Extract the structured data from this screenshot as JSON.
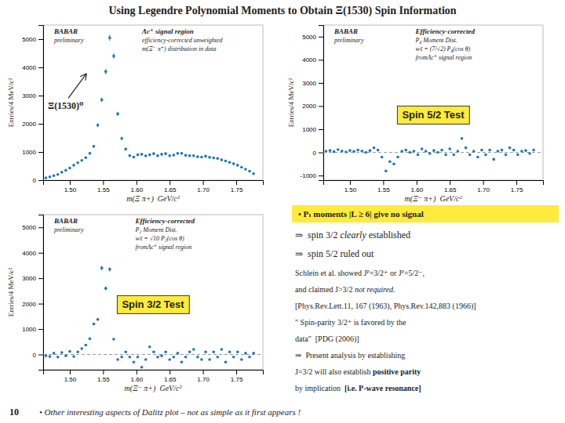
{
  "title": "Using Legendre Polynomial Moments to Obtain Ξ(1530) Spin Information",
  "note": "• Pₗ moments |L ≥ 6| give no signal",
  "annotations": [
    [
      "⇒  spin 3/2 ",
      "clearly",
      " established"
    ],
    [
      "⇒  spin 5/2 ruled out"
    ],
    [
      "Schlein et al. showed Jᴾ=3/2⁺ or Jᴾ=5/2⁻,"
    ],
    [
      "and claimed J>3/2 ",
      "not required."
    ],
    [
      "[Phys.Rev.Lett.11, 167 (1963), Phys.Rev.142,883 (1966)]"
    ],
    [
      "\" Spin-parity 3/2⁺ is favored by the"
    ],
    [
      "data\"  [PDG (2006)]"
    ],
    [
      "⇒  Present analysis by establishing"
    ],
    [
      "J=3/2 will also establish ",
      "positive parity"
    ],
    [
      "by implication  ",
      "[i.e. P-wave resonance]"
    ]
  ],
  "footer": [
    "10",
    "• Other interesting aspects of Dalitz plot – not as simple as it first appears !"
  ],
  "chart_data": [
    {
      "type": "scatter",
      "xlabel": "m(Ξ π+)  GeV/c²",
      "ylabel": "Entries/4 MeV/c²",
      "xlim": [
        1.46,
        1.79
      ],
      "ylim": [
        0,
        5500
      ],
      "xticks": [
        {
          "value": 1.5,
          "label": "1.50"
        },
        1.55,
        {
          "value": 1.6,
          "label": "1.60"
        },
        1.65,
        {
          "value": 1.7,
          "label": "1.70"
        },
        1.75
      ],
      "yticks": [
        0,
        1000,
        2000,
        3000,
        4000,
        5000
      ],
      "x": [
        1.464,
        1.47,
        1.476,
        1.482,
        1.488,
        1.494,
        1.5,
        1.506,
        1.512,
        1.518,
        1.524,
        1.53,
        1.536,
        1.542,
        1.548,
        1.554,
        1.56,
        1.566,
        1.572,
        1.578,
        1.584,
        1.59,
        1.596,
        1.602,
        1.608,
        1.614,
        1.62,
        1.626,
        1.632,
        1.638,
        1.644,
        1.65,
        1.656,
        1.662,
        1.668,
        1.674,
        1.68,
        1.686,
        1.692,
        1.698,
        1.704,
        1.71,
        1.716,
        1.722,
        1.728,
        1.734,
        1.74,
        1.746,
        1.752,
        1.758,
        1.764,
        1.77,
        1.776
      ],
      "values": [
        80,
        120,
        160,
        200,
        280,
        350,
        430,
        530,
        620,
        700,
        800,
        950,
        1200,
        1950,
        2850,
        3850,
        5050,
        4400,
        2350,
        1480,
        1100,
        870,
        820,
        900,
        920,
        860,
        900,
        940,
        870,
        920,
        940,
        870,
        890,
        950,
        950,
        880,
        870,
        870,
        830,
        820,
        850,
        810,
        790,
        770,
        720,
        680,
        630,
        580,
        530,
        460,
        390,
        320,
        230
      ],
      "errors": [
        20,
        20,
        20,
        21.2132,
        25.0998,
        28.0624,
        31.1047,
        34.5326,
        37.3497,
        39.6863,
        42.4264,
        46.2331,
        51.9615,
        66.2382,
        80.0781,
        93.0726,
        106.595,
        99.4987,
        72.7152,
        57.7062,
        49.7494,
        44.2436,
        42.9535,
        45,
        45.4973,
        43.9886,
        45,
        45.9891,
        44.2436,
        45.4973,
        45.9891,
        44.2436,
        44.7493,
        46.2331,
        46.2331,
        44.4972,
        44.2436,
        44.2436,
        43.2146,
        42.9535,
        43.7321,
        42.6907,
        42.1604,
        41.6233,
        40.2492,
        39.1152,
        37.6497,
        36.1248,
        34.5326,
        32.1714,
        29.6226,
        26.8328,
        22.7486
      ],
      "annotations": [
        [
          "BABAR",
          "preliminary"
        ],
        [
          "Λc⁺ signal region",
          "efficiency-corrected unweighted",
          "m(Ξ⁻ π⁺) distribution in data"
        ],
        {
          "text": "Ξ(1530)⁰",
          "x": 1.527,
          "y": 3850
        }
      ]
    },
    {
      "type": "scatter",
      "xlabel": "m(Ξ⁻ π+)  GeV/c²",
      "ylabel": "Entries/4 MeV/c²",
      "xlim": [
        1.46,
        1.79
      ],
      "ylim": [
        -1200,
        5500
      ],
      "xticks": [
        {
          "value": 1.5,
          "label": "1.50"
        },
        1.55,
        {
          "value": 1.6,
          "label": "1.60"
        },
        1.65,
        {
          "value": 1.7,
          "label": "1.70"
        },
        1.75
      ],
      "yticks": [
        -1000,
        0,
        1000,
        2000,
        3000,
        4000,
        5000
      ],
      "x": [
        1.464,
        1.47,
        1.476,
        1.482,
        1.488,
        1.494,
        1.5,
        1.506,
        1.512,
        1.518,
        1.524,
        1.53,
        1.536,
        1.542,
        1.548,
        1.554,
        1.56,
        1.566,
        1.572,
        1.578,
        1.584,
        1.59,
        1.596,
        1.602,
        1.608,
        1.614,
        1.62,
        1.626,
        1.632,
        1.638,
        1.644,
        1.65,
        1.656,
        1.662,
        1.668,
        1.674,
        1.68,
        1.686,
        1.692,
        1.698,
        1.704,
        1.71,
        1.716,
        1.722,
        1.728,
        1.734,
        1.74,
        1.746,
        1.752,
        1.758,
        1.764,
        1.77,
        1.776
      ],
      "values": [
        50,
        80,
        30,
        120,
        60,
        20,
        80,
        40,
        100,
        60,
        0,
        80,
        200,
        100,
        -200,
        -800,
        -400,
        -500,
        -200,
        50,
        100,
        0,
        50,
        -100,
        150,
        50,
        -50,
        80,
        0,
        100,
        -100,
        150,
        -100,
        50,
        600,
        200,
        -100,
        50,
        -200,
        100,
        -100,
        100,
        -300,
        50,
        100,
        -100,
        200,
        100,
        -100,
        50,
        80,
        -50,
        100
      ],
      "errors": [
        20,
        20,
        20,
        20,
        20,
        20,
        20,
        20,
        20,
        20,
        20,
        20,
        21.2132,
        20,
        21.2132,
        42.4264,
        30,
        33.541,
        21.2132,
        20,
        20,
        20,
        20,
        20,
        20,
        20,
        20,
        20,
        20,
        20,
        20,
        20,
        20,
        20,
        36.7423,
        21.2132,
        20,
        20,
        21.2132,
        20,
        20,
        20,
        25.9808,
        20,
        20,
        20,
        21.2132,
        20,
        20,
        20,
        20,
        20,
        20
      ],
      "hlines": [
        0
      ],
      "annotations": [
        [
          "BABAR",
          "preliminary"
        ],
        [
          "Efficiency-corrected",
          "P₄ Moment Dist.",
          "wℓ = (7/√2) P₄(cos θ)",
          "fromΛc⁺ signal region"
        ],
        [
          "Spin 5/2 Test"
        ]
      ]
    },
    {
      "type": "scatter",
      "xlabel": "m(Ξ⁻ π+)  GeV/c²",
      "ylabel": "Entries/4 MeV/c²",
      "xlim": [
        1.46,
        1.79
      ],
      "ylim": [
        -600,
        5500
      ],
      "xticks": [
        {
          "value": 1.5,
          "label": "1.50"
        },
        1.55,
        {
          "value": 1.6,
          "label": "1.60"
        },
        1.65,
        {
          "value": 1.7,
          "label": "1.70"
        },
        1.75
      ],
      "yticks": [
        0,
        1000,
        2000,
        3000,
        4000,
        5000
      ],
      "x": [
        1.464,
        1.47,
        1.476,
        1.482,
        1.488,
        1.494,
        1.5,
        1.506,
        1.512,
        1.518,
        1.524,
        1.53,
        1.536,
        1.542,
        1.548,
        1.554,
        1.56,
        1.566,
        1.572,
        1.578,
        1.584,
        1.59,
        1.596,
        1.602,
        1.608,
        1.614,
        1.62,
        1.626,
        1.632,
        1.638,
        1.644,
        1.65,
        1.656,
        1.662,
        1.668,
        1.674,
        1.68,
        1.686,
        1.692,
        1.698,
        1.704,
        1.71,
        1.716,
        1.722,
        1.728,
        1.734,
        1.74,
        1.746,
        1.752,
        1.758,
        1.764,
        1.77,
        1.776
      ],
      "values": [
        -50,
        -80,
        50,
        -100,
        80,
        -50,
        120,
        -80,
        100,
        230,
        370,
        620,
        1200,
        1380,
        3400,
        2600,
        3350,
        600,
        -200,
        -100,
        100,
        -100,
        -300,
        -100,
        -500,
        -200,
        300,
        100,
        -100,
        -50,
        100,
        -200,
        -100,
        50,
        -300,
        -100,
        100,
        200,
        -100,
        -200,
        100,
        -200,
        100,
        -100,
        200,
        -300,
        100,
        -100,
        100,
        -200,
        50,
        -100,
        50
      ],
      "errors": [
        20,
        20,
        20,
        20,
        20,
        20,
        20,
        20,
        20,
        22.7486,
        28.8531,
        37.3497,
        51.9615,
        55.7225,
        87.4643,
        76.4853,
        86.8188,
        36.7423,
        21.2132,
        20,
        20,
        20,
        25.9808,
        20,
        33.541,
        21.2132,
        25.9808,
        20,
        20,
        20,
        20,
        21.2132,
        20,
        20,
        25.9808,
        20,
        20,
        21.2132,
        20,
        21.2132,
        20,
        21.2132,
        20,
        20,
        21.2132,
        25.9808,
        20,
        20,
        20,
        21.2132,
        20,
        20,
        20
      ],
      "hlines": [
        0
      ],
      "annotations": [
        [
          "BABAR",
          "preliminary"
        ],
        [
          "Efficiency-corrected",
          "P₂ Moment Dist.",
          "wℓ = √10 P₂(cos θ)",
          "fromΛc⁺ signal region"
        ],
        [
          "Spin 3/2 Test"
        ]
      ]
    }
  ]
}
